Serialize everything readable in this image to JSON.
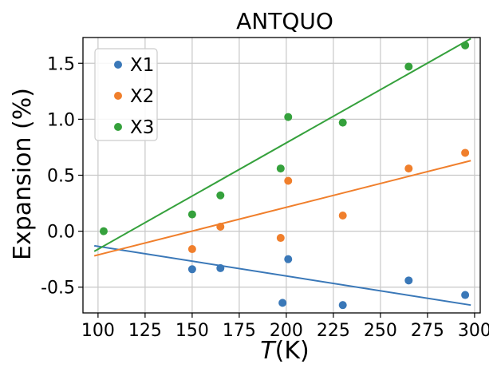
{
  "chart_data": {
    "type": "scatter",
    "title": "ANTQUO",
    "xlabel": {
      "var": "T",
      "unit": "(K)"
    },
    "ylabel": "Expansion (%)",
    "xlim": [
      92,
      303
    ],
    "ylim": [
      -0.73,
      1.73
    ],
    "xticks": [
      100,
      125,
      150,
      175,
      200,
      225,
      250,
      275,
      300
    ],
    "yticks": [
      1.5,
      1.0,
      0.5,
      0.0,
      -0.5
    ],
    "ytick_labels": [
      "1.5",
      "1.0",
      "0.5",
      "0.0",
      "-0.5"
    ],
    "grid": true,
    "legend_position": "top-left",
    "series": [
      {
        "name": "X1",
        "color": "#3a78b8",
        "x": [
          150,
          165,
          198,
          201,
          230,
          265,
          295
        ],
        "y": [
          -0.34,
          -0.33,
          -0.64,
          -0.25,
          -0.66,
          -0.44,
          -0.57
        ],
        "fit": {
          "x": [
            98,
            298
          ],
          "y": [
            -0.13,
            -0.66
          ]
        }
      },
      {
        "name": "X2",
        "color": "#f07f2c",
        "x": [
          150,
          165,
          197,
          201,
          230,
          265,
          295
        ],
        "y": [
          -0.16,
          0.04,
          -0.06,
          0.45,
          0.14,
          0.56,
          0.7
        ],
        "fit": {
          "x": [
            98,
            298
          ],
          "y": [
            -0.22,
            0.63
          ]
        }
      },
      {
        "name": "X3",
        "color": "#35a13c",
        "x": [
          103,
          150,
          165,
          197,
          201,
          230,
          265,
          295
        ],
        "y": [
          0.0,
          0.15,
          0.32,
          0.56,
          1.02,
          0.97,
          1.47,
          1.66
        ],
        "fit": {
          "x": [
            98,
            298
          ],
          "y": [
            -0.18,
            1.72
          ]
        }
      }
    ]
  }
}
